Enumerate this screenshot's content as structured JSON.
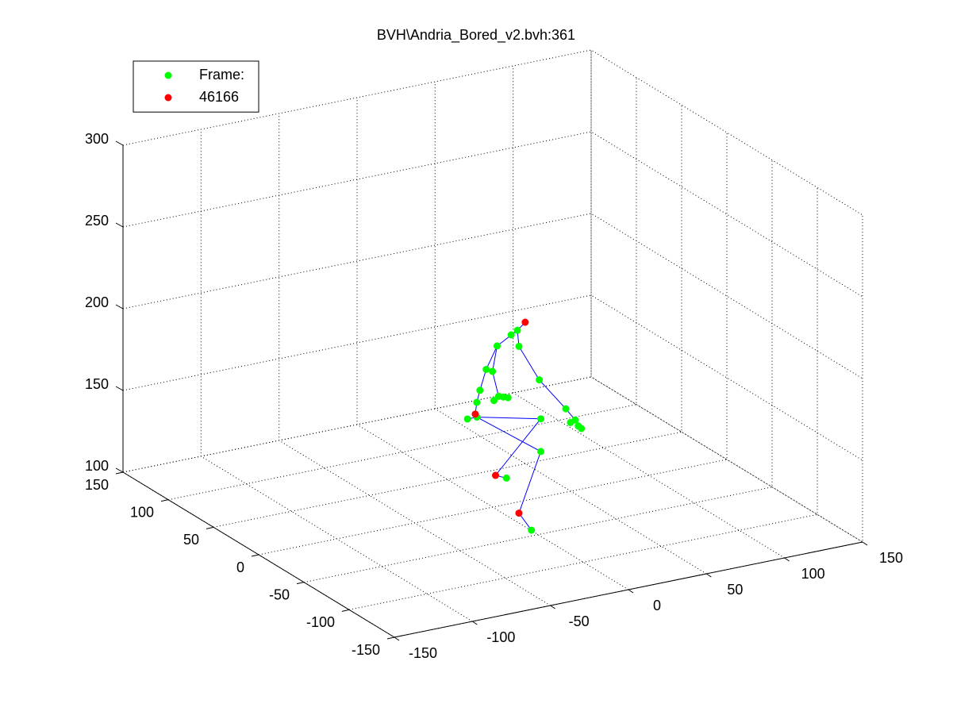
{
  "chart_data": {
    "type": "scatter3d",
    "title": "BVH\\Andria_Bored_v2.bvh:361",
    "xlim": [
      -150,
      150
    ],
    "ylim": [
      -150,
      150
    ],
    "zlim": [
      100,
      300
    ],
    "xticks": [
      -150,
      -100,
      -50,
      0,
      50,
      100,
      150
    ],
    "yticks": [
      -150,
      -100,
      -50,
      0,
      50,
      100,
      150
    ],
    "zticks": [
      100,
      150,
      200,
      250,
      300
    ],
    "grid": true,
    "legend": "upper left",
    "line": {
      "color": "#0000ff",
      "x": [
        -14,
        -19,
        -32,
        -39,
        -43,
        -45,
        -46,
        null,
        -32,
        -35,
        -31,
        null,
        -19,
        -18,
        -5,
        12,
        18,
        null,
        -51,
        -45,
        -4,
        -33,
        -26,
        null,
        -45,
        -4,
        -18,
        -10
      ],
      "y": [
        -60,
        -60,
        -60,
        -60,
        -60,
        -60,
        -60,
        null,
        -60,
        -60,
        -60,
        null,
        -60,
        -60,
        -60,
        -60,
        -60,
        null,
        -60,
        -60,
        -60,
        -60,
        -60,
        null,
        -60,
        -60,
        -60,
        -60
      ],
      "z": [
        236,
        232,
        225,
        212,
        200,
        193,
        186,
        null,
        225,
        210,
        194,
        null,
        232,
        222,
        199,
        178,
        170,
        null,
        184,
        184,
        175,
        146,
        143,
        null,
        184,
        155,
        120,
        108
      ]
    },
    "series": [
      {
        "name": "Frame:",
        "color": "#00ff00",
        "x": [
          -19,
          -23,
          -18,
          -32,
          -39,
          -35,
          -43,
          -45,
          -34,
          -31,
          -28,
          -25,
          -51,
          -45,
          -5,
          12,
          15,
          18,
          20,
          22,
          -4,
          -4,
          -26,
          -10
        ],
        "y": [
          -60,
          -60,
          -60,
          -60,
          -60,
          -60,
          -60,
          -60,
          -60,
          -60,
          -60,
          -60,
          -60,
          -60,
          -60,
          -60,
          -60,
          -60,
          -60,
          -60,
          -60,
          -60,
          -60,
          -60
        ],
        "z": [
          232,
          230,
          222,
          225,
          212,
          210,
          200,
          193,
          192,
          194,
          193,
          192,
          184,
          184,
          199,
          178,
          169,
          170,
          166,
          164,
          175,
          155,
          143,
          108
        ]
      },
      {
        "name": "46166",
        "color": "#ff0000",
        "x": [
          -14,
          -46,
          -33,
          -18
        ],
        "y": [
          -60,
          -60,
          -60,
          -60
        ],
        "z": [
          236,
          186,
          146,
          120
        ]
      }
    ]
  }
}
